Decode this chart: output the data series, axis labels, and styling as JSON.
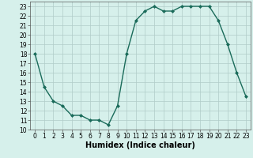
{
  "x": [
    0,
    1,
    2,
    3,
    4,
    5,
    6,
    7,
    8,
    9,
    10,
    11,
    12,
    13,
    14,
    15,
    16,
    17,
    18,
    19,
    20,
    21,
    22,
    23
  ],
  "y": [
    18,
    14.5,
    13,
    12.5,
    11.5,
    11.5,
    11,
    11,
    10.5,
    12.5,
    18,
    21.5,
    22.5,
    23,
    22.5,
    22.5,
    23,
    23,
    23,
    23,
    21.5,
    19,
    16,
    13.5
  ],
  "line_color": "#1a6b5a",
  "marker": "D",
  "marker_size": 2,
  "linewidth": 1.0,
  "xlabel": "Humidex (Indice chaleur)",
  "xlabel_fontsize": 7,
  "ylim": [
    10,
    23.5
  ],
  "xlim": [
    -0.5,
    23.5
  ],
  "yticks": [
    10,
    11,
    12,
    13,
    14,
    15,
    16,
    17,
    18,
    19,
    20,
    21,
    22,
    23
  ],
  "xticks": [
    0,
    1,
    2,
    3,
    4,
    5,
    6,
    7,
    8,
    9,
    10,
    11,
    12,
    13,
    14,
    15,
    16,
    17,
    18,
    19,
    20,
    21,
    22,
    23
  ],
  "background_color": "#d6f0eb",
  "grid_color": "#b0ccc8",
  "tick_fontsize": 5.5,
  "spine_color": "#555555"
}
